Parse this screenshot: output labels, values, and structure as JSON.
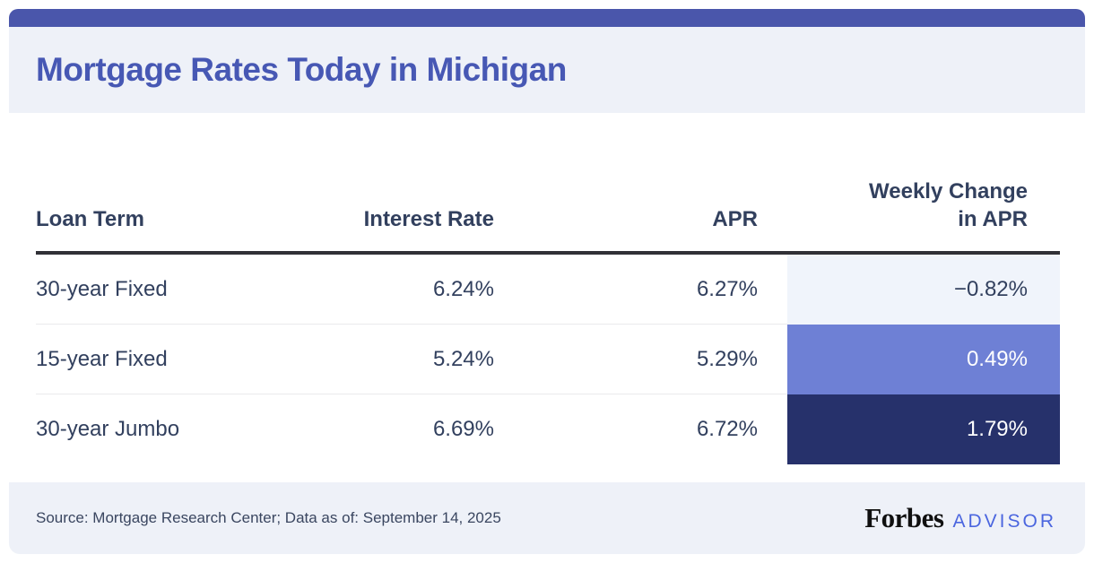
{
  "page": {
    "title": "Mortgage Rates Today in Michigan"
  },
  "colors": {
    "top_bar": "#4A56AB",
    "band_background": "#EEF1F8",
    "title_text": "#4758B4",
    "table_text": "#32405E",
    "header_rule": "#303036",
    "advisor_blue": "#4B66DF",
    "change_cell_low": "#F0F4FB",
    "change_cell_mid": "#6E80D5",
    "change_cell_high": "#26316B"
  },
  "table": {
    "columns": [
      {
        "label": "Loan Term"
      },
      {
        "label": "Interest Rate"
      },
      {
        "label": "APR"
      },
      {
        "label": "Weekly Change in APR",
        "line1": "Weekly Change",
        "line2": "in APR"
      }
    ],
    "rows": [
      {
        "loan_term": "30-year Fixed",
        "interest_rate": "6.24%",
        "apr": "6.27%",
        "weekly_change": "−0.82%",
        "change_bg": "#F0F4FB",
        "change_color": "#32405E"
      },
      {
        "loan_term": "15-year Fixed",
        "interest_rate": "5.24%",
        "apr": "5.29%",
        "weekly_change": "0.49%",
        "change_bg": "#6E80D5",
        "change_color": "#FFFFFF"
      },
      {
        "loan_term": "30-year Jumbo",
        "interest_rate": "6.69%",
        "apr": "6.72%",
        "weekly_change": "1.79%",
        "change_bg": "#26316B",
        "change_color": "#FFFFFF"
      }
    ]
  },
  "footer": {
    "source": "Source: Mortgage Research Center; Data as of: September 14, 2025",
    "brand": "Forbes",
    "brand_suffix": "ADVISOR"
  },
  "chart_data": {
    "type": "table",
    "title": "Mortgage Rates Today in Michigan",
    "columns": [
      "Loan Term",
      "Interest Rate",
      "APR",
      "Weekly Change in APR"
    ],
    "rows": [
      [
        "30-year Fixed",
        "6.24%",
        "6.27%",
        "−0.82%"
      ],
      [
        "15-year Fixed",
        "5.24%",
        "5.29%",
        "0.49%"
      ],
      [
        "30-year Jumbo",
        "6.69%",
        "6.72%",
        "1.79%"
      ]
    ],
    "numeric": {
      "interest_rate_pct": [
        6.24,
        5.24,
        6.69
      ],
      "apr_pct": [
        6.27,
        5.29,
        6.72
      ],
      "weekly_change_in_apr_pct": [
        -0.82,
        0.49,
        1.79
      ]
    },
    "layout_hints": "Weekly Change in APR column cells shaded from light (negative change) to dark navy (largest positive change)",
    "source": "Source: Mortgage Research Center; Data as of: September 14, 2025"
  }
}
